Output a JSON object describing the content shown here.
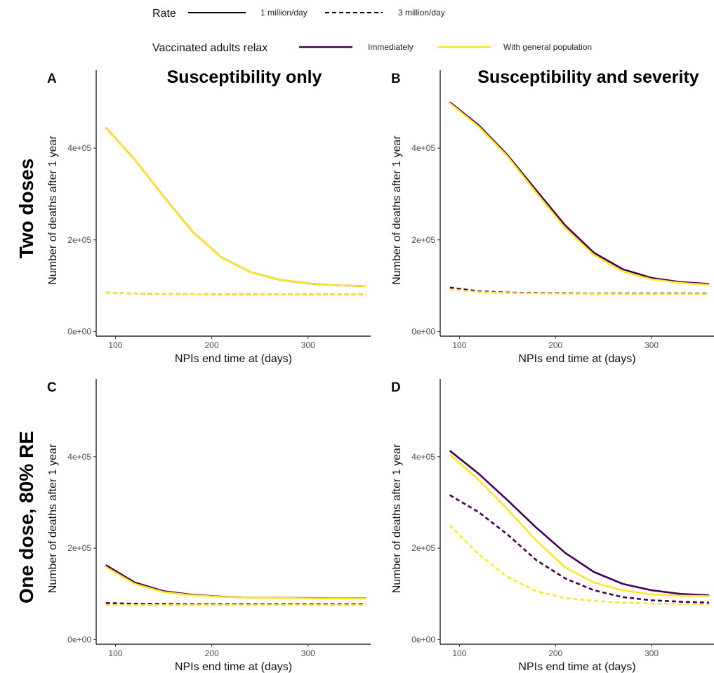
{
  "legend": {
    "rate_title": "Rate",
    "rate_items": [
      {
        "label": "1 million/day",
        "dash": "solid"
      },
      {
        "label": "3 million/day",
        "dash": "dashed"
      }
    ],
    "relax_title": "Vaccinated adults relax",
    "relax_items": [
      {
        "label": "Immediately",
        "color": "#440154"
      },
      {
        "label": "With general population",
        "color": "#FDE725"
      }
    ]
  },
  "column_headers": [
    "Susceptibility only",
    "Susceptibility and severity"
  ],
  "row_headers": [
    "Two doses",
    "One dose, 80% RE"
  ],
  "chart_data": [
    {
      "panel": "A",
      "type": "line",
      "xlabel": "NPIs end time at (days)",
      "ylabel": "Number of deaths after 1 year",
      "xlim": [
        80,
        365
      ],
      "ylim": [
        -10000,
        570000
      ],
      "x_ticks": [
        100,
        200,
        300
      ],
      "y_ticks": [
        0,
        200000,
        400000
      ],
      "y_tick_labels": [
        "0e+00",
        "2e+05",
        "4e+05"
      ],
      "x": [
        90,
        120,
        150,
        180,
        210,
        240,
        270,
        300,
        330,
        360
      ],
      "series": [
        {
          "rate": "1 million/day",
          "relax": "Immediately",
          "color": "#440154",
          "dash": "solid",
          "values": [
            445000,
            375000,
            295000,
            218000,
            162000,
            130000,
            113000,
            105000,
            101000,
            99000
          ]
        },
        {
          "rate": "1 million/day",
          "relax": "With general population",
          "color": "#FDE725",
          "dash": "solid",
          "values": [
            445000,
            375000,
            295000,
            218000,
            162000,
            130000,
            113000,
            105000,
            101000,
            99000
          ]
        },
        {
          "rate": "3 million/day",
          "relax": "Immediately",
          "color": "#440154",
          "dash": "dashed",
          "values": [
            85000,
            83000,
            82000,
            81500,
            81000,
            81000,
            81000,
            81000,
            81000,
            81000
          ]
        },
        {
          "rate": "3 million/day",
          "relax": "With general population",
          "color": "#FDE725",
          "dash": "dashed",
          "values": [
            85000,
            83000,
            82000,
            81500,
            81000,
            81000,
            81000,
            81000,
            81000,
            81000
          ]
        }
      ]
    },
    {
      "panel": "B",
      "type": "line",
      "xlabel": "NPIs end time at (days)",
      "ylabel": "Number of deaths after 1 year",
      "xlim": [
        80,
        365
      ],
      "ylim": [
        -10000,
        570000
      ],
      "x_ticks": [
        100,
        200,
        300
      ],
      "y_ticks": [
        0,
        200000,
        400000
      ],
      "y_tick_labels": [
        "0e+00",
        "2e+05",
        "4e+05"
      ],
      "x": [
        90,
        120,
        150,
        180,
        210,
        240,
        270,
        300,
        330,
        360
      ],
      "series": [
        {
          "rate": "1 million/day",
          "relax": "Immediately",
          "color": "#440154",
          "dash": "solid",
          "values": [
            500000,
            450000,
            385000,
            308000,
            232000,
            172000,
            136000,
            117000,
            108000,
            104000
          ]
        },
        {
          "rate": "1 million/day",
          "relax": "With general population",
          "color": "#FDE725",
          "dash": "solid",
          "values": [
            498000,
            447000,
            382000,
            303000,
            226000,
            167000,
            131000,
            114000,
            106000,
            102000
          ]
        },
        {
          "rate": "3 million/day",
          "relax": "Immediately",
          "color": "#440154",
          "dash": "dashed",
          "values": [
            96000,
            88000,
            85000,
            84000,
            83500,
            83000,
            83000,
            83000,
            83000,
            83000
          ]
        },
        {
          "rate": "3 million/day",
          "relax": "With general population",
          "color": "#FDE725",
          "dash": "dashed",
          "values": [
            92000,
            86000,
            84000,
            83000,
            82500,
            82500,
            82000,
            82000,
            82000,
            82000
          ]
        }
      ]
    },
    {
      "panel": "C",
      "type": "line",
      "xlabel": "NPIs end time at (days)",
      "ylabel": "Number of deaths after 1 year",
      "xlim": [
        80,
        365
      ],
      "ylim": [
        -10000,
        570000
      ],
      "x_ticks": [
        100,
        200,
        300
      ],
      "y_ticks": [
        0,
        200000,
        400000
      ],
      "y_tick_labels": [
        "0e+00",
        "2e+05",
        "4e+05"
      ],
      "x": [
        90,
        120,
        150,
        180,
        210,
        240,
        270,
        300,
        330,
        360
      ],
      "series": [
        {
          "rate": "1 million/day",
          "relax": "Immediately",
          "color": "#440154",
          "dash": "solid",
          "values": [
            163000,
            125000,
            106000,
            98000,
            94000,
            92000,
            91500,
            91000,
            90500,
            90000
          ]
        },
        {
          "rate": "1 million/day",
          "relax": "With general population",
          "color": "#FDE725",
          "dash": "solid",
          "values": [
            159000,
            122000,
            104000,
            97000,
            93500,
            92000,
            91000,
            90500,
            90000,
            89500
          ]
        },
        {
          "rate": "3 million/day",
          "relax": "Immediately",
          "color": "#440154",
          "dash": "dashed",
          "values": [
            80000,
            78500,
            78000,
            77500,
            77500,
            77500,
            77500,
            77500,
            77500,
            77500
          ]
        },
        {
          "rate": "3 million/day",
          "relax": "With general population",
          "color": "#FDE725",
          "dash": "dashed",
          "values": [
            76000,
            75500,
            75500,
            75500,
            75500,
            75500,
            75500,
            75500,
            75500,
            75500
          ]
        }
      ]
    },
    {
      "panel": "D",
      "type": "line",
      "xlabel": "NPIs end time at (days)",
      "ylabel": "Number of deaths after 1 year",
      "xlim": [
        80,
        365
      ],
      "ylim": [
        -10000,
        570000
      ],
      "x_ticks": [
        100,
        200,
        300
      ],
      "y_ticks": [
        0,
        200000,
        400000
      ],
      "y_tick_labels": [
        "0e+00",
        "2e+05",
        "4e+05"
      ],
      "x": [
        90,
        120,
        150,
        180,
        210,
        240,
        270,
        300,
        330,
        360
      ],
      "series": [
        {
          "rate": "1 million/day",
          "relax": "Immediately",
          "color": "#440154",
          "dash": "solid",
          "values": [
            413000,
            363000,
            305000,
            245000,
            190000,
            148000,
            122000,
            108000,
            100000,
            97000
          ]
        },
        {
          "rate": "1 million/day",
          "relax": "With general population",
          "color": "#FDE725",
          "dash": "solid",
          "values": [
            405000,
            350000,
            285000,
            217000,
            158000,
            125000,
            108000,
            99000,
            96000,
            95000
          ]
        },
        {
          "rate": "3 million/day",
          "relax": "Immediately",
          "color": "#440154",
          "dash": "dashed",
          "values": [
            316000,
            279000,
            230000,
            174000,
            134000,
            108000,
            93000,
            86000,
            83000,
            81000
          ]
        },
        {
          "rate": "3 million/day",
          "relax": "With general population",
          "color": "#FDE725",
          "dash": "dashed",
          "values": [
            250000,
            187000,
            137000,
            106000,
            91000,
            85000,
            81000,
            79000,
            78000,
            77000
          ]
        }
      ]
    }
  ]
}
